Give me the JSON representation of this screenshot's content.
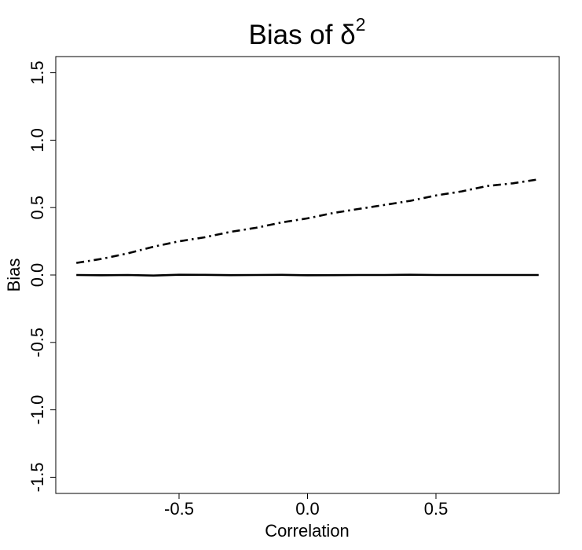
{
  "chart_data": {
    "type": "line",
    "title": "Bias of ",
    "title_symbol": "δ",
    "title_superscript": "2",
    "xlabel": "Correlation",
    "ylabel": "Bias",
    "xlim": [
      -0.98,
      0.98
    ],
    "ylim": [
      -1.62,
      1.62
    ],
    "x_ticks": [
      -0.5,
      0.0,
      0.5
    ],
    "x_tick_labels": [
      "-0.5",
      "0.0",
      "0.5"
    ],
    "y_ticks": [
      -1.5,
      -1.0,
      -0.5,
      0.0,
      0.5,
      1.0,
      1.5
    ],
    "y_tick_labels": [
      "-1.5",
      "-1.0",
      "-0.5",
      "0.0",
      "0.5",
      "1.0",
      "1.5"
    ],
    "grid": false,
    "legend": "none",
    "series": [
      {
        "style": "solid",
        "color": "#000000",
        "x": [
          -0.9,
          -0.8,
          -0.7,
          -0.6,
          -0.5,
          -0.4,
          -0.3,
          -0.2,
          -0.1,
          0.0,
          0.1,
          0.2,
          0.3,
          0.4,
          0.5,
          0.6,
          0.7,
          0.8,
          0.9
        ],
        "y": [
          0.0,
          -0.002,
          0.0,
          -0.004,
          0.002,
          0.001,
          -0.001,
          0.0,
          0.001,
          -0.002,
          -0.001,
          0.0,
          0.0,
          0.002,
          0.0,
          0.0,
          0.0,
          0.0,
          0.0
        ]
      },
      {
        "style": "dashdot",
        "color": "#000000",
        "x": [
          -0.9,
          -0.8,
          -0.7,
          -0.6,
          -0.5,
          -0.4,
          -0.3,
          -0.2,
          -0.1,
          0.0,
          0.1,
          0.2,
          0.3,
          0.4,
          0.5,
          0.6,
          0.7,
          0.8,
          0.9
        ],
        "y": [
          0.09,
          0.12,
          0.16,
          0.21,
          0.25,
          0.28,
          0.32,
          0.35,
          0.39,
          0.42,
          0.46,
          0.49,
          0.52,
          0.55,
          0.59,
          0.62,
          0.66,
          0.68,
          0.71
        ]
      }
    ]
  }
}
